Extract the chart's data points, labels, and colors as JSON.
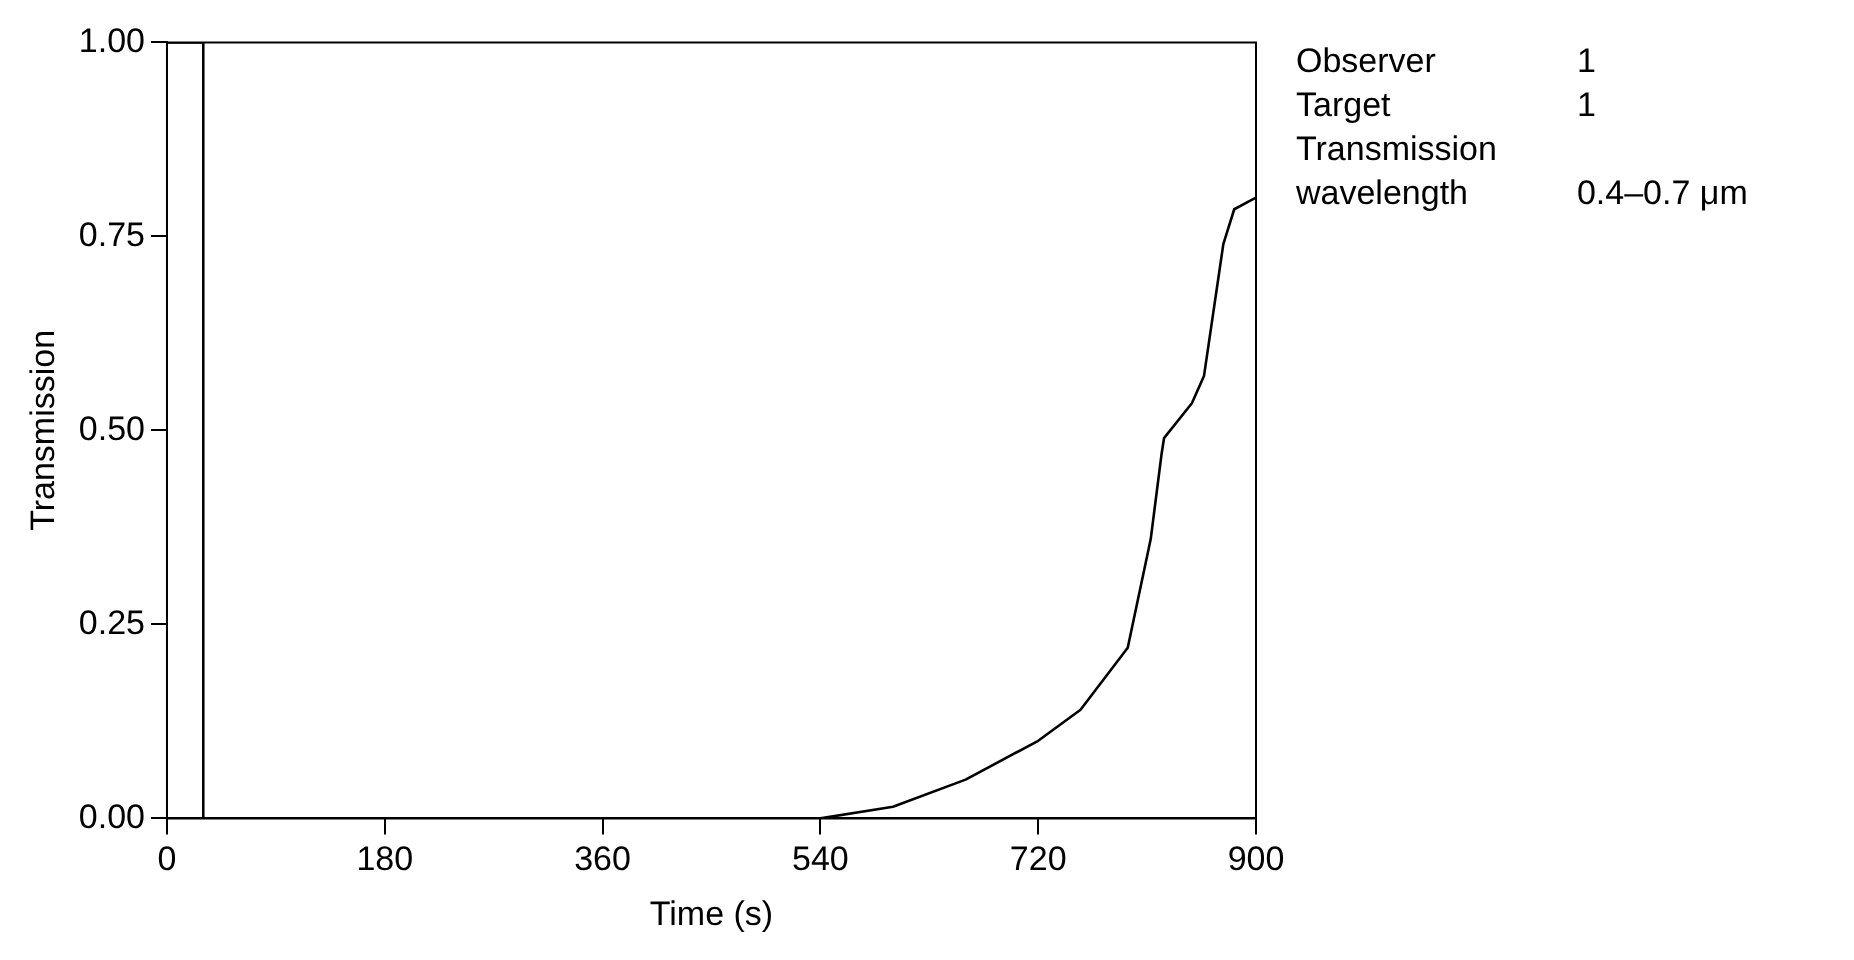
{
  "chart_data": {
    "type": "line",
    "xlabel": "Time (s)",
    "ylabel": "Transmission",
    "x": [
      0,
      30,
      30,
      540,
      600,
      660,
      720,
      755,
      794,
      813,
      822,
      824,
      847,
      857,
      873,
      882,
      900
    ],
    "series": [
      {
        "color": "#000000",
        "values": [
          1,
          1,
          0,
          0,
          0.015,
          0.05,
          0.1,
          0.14,
          0.22,
          0.36,
          0.47,
          0.49,
          0.535,
          0.57,
          0.74,
          0.785,
          0.8
        ]
      }
    ],
    "xlim": [
      0,
      900
    ],
    "xticks": [
      0,
      180,
      360,
      540,
      720,
      900
    ],
    "ylim": [
      0,
      1
    ],
    "yticks": [
      {
        "value": 0,
        "label": "0.00"
      },
      {
        "value": 0.25,
        "label": "0.25"
      },
      {
        "value": 0.5,
        "label": "0.50"
      },
      {
        "value": 0.75,
        "label": "0.75"
      },
      {
        "value": 1,
        "label": "1.00"
      }
    ],
    "grid": false,
    "legend": false,
    "marker": "none",
    "line_style": "solid",
    "annotations": [
      "Observer",
      "1",
      "Target",
      "1",
      "Transmission\nwavelength",
      "0.4–0.7 μm"
    ]
  }
}
